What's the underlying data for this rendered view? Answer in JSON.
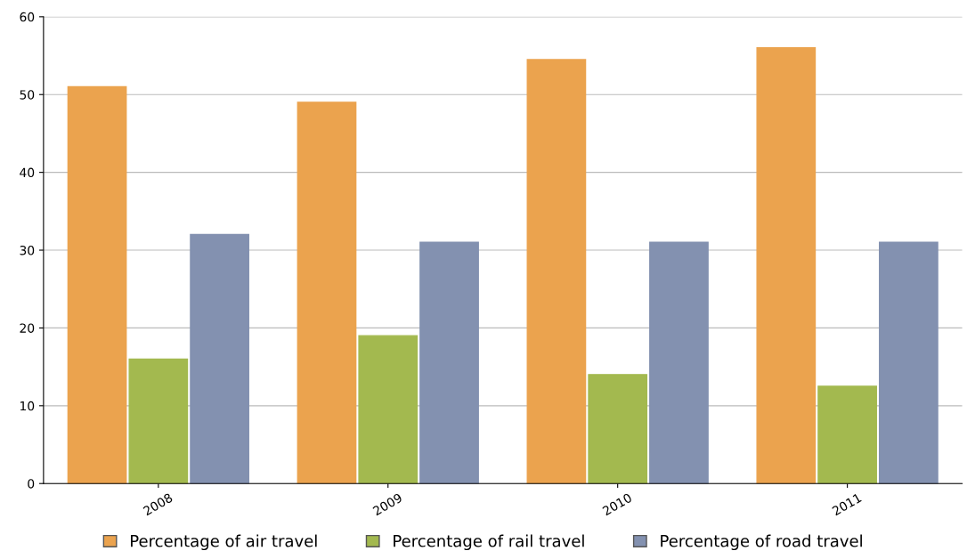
{
  "chart_data": {
    "type": "bar",
    "categories": [
      "2008",
      "2009",
      "2010",
      "2011"
    ],
    "series": [
      {
        "name": "Percentage of air travel",
        "color": "#eba34e",
        "values": [
          51,
          49,
          54.5,
          56
        ]
      },
      {
        "name": "Percentage of rail travel",
        "color": "#a3b94f",
        "values": [
          16,
          19,
          14,
          12.5
        ]
      },
      {
        "name": "Percentage of road travel",
        "color": "#8391b0",
        "values": [
          32,
          31,
          31,
          31
        ]
      }
    ],
    "ylim": [
      0,
      60
    ],
    "yticks": [
      0,
      10,
      20,
      30,
      40,
      50,
      60
    ],
    "grid": "y",
    "legend": "bottom"
  }
}
